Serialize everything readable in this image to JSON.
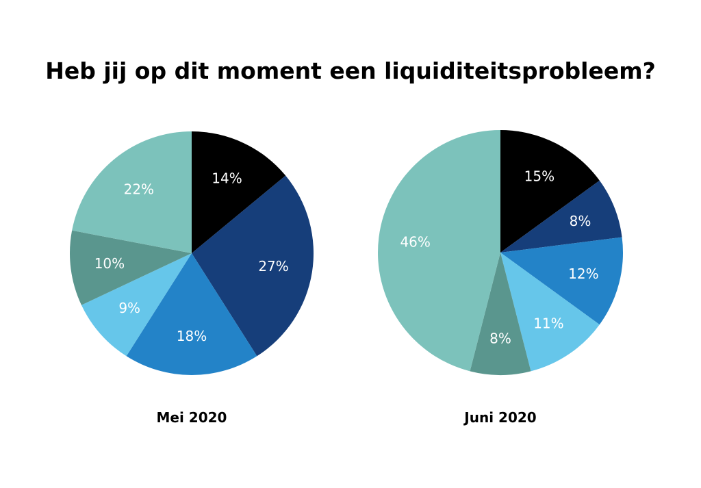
{
  "page": {
    "title": "Heb jij op dit moment een liquiditeitsprobleem?"
  },
  "chart_data": [
    {
      "type": "pie",
      "title": "Mei 2020",
      "values": [
        14,
        27,
        18,
        9,
        10,
        22
      ],
      "labels": [
        "14%",
        "27%",
        "18%",
        "9%",
        "10%",
        "22%"
      ],
      "colors": [
        "#000000",
        "#163e7a",
        "#2383c8",
        "#66c6ea",
        "#5a968e",
        "#7cc2bb"
      ]
    },
    {
      "type": "pie",
      "title": "Juni 2020",
      "values": [
        15,
        8,
        12,
        11,
        8,
        46
      ],
      "labels": [
        "15%",
        "8%",
        "12%",
        "11%",
        "8%",
        "46%"
      ],
      "colors": [
        "#000000",
        "#163e7a",
        "#2383c8",
        "#66c6ea",
        "#5a968e",
        "#7cc2bb"
      ]
    }
  ]
}
